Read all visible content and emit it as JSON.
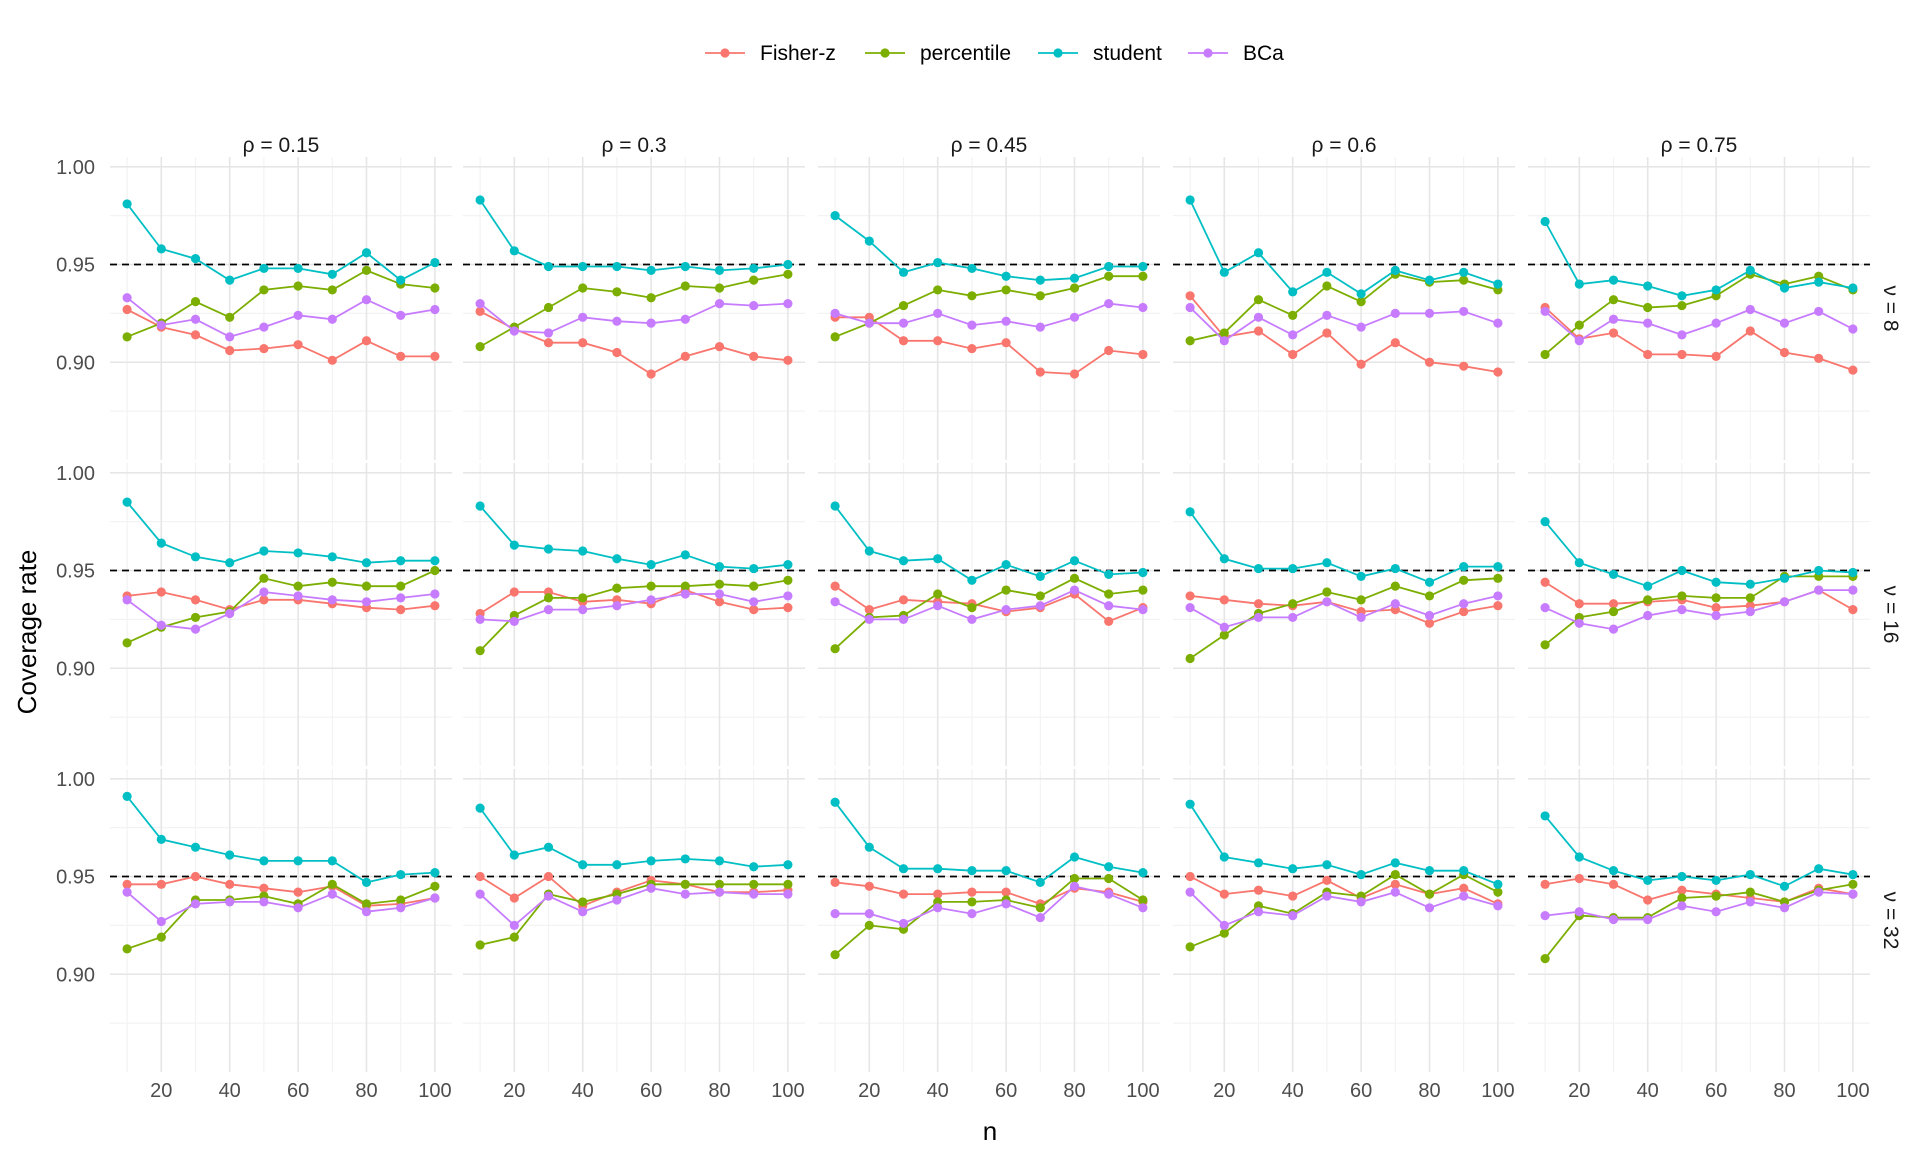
{
  "chart_data": {
    "type": "line",
    "facet_cols": {
      "variable": "ρ",
      "values": [
        "0.15",
        "0.3",
        "0.45",
        "0.6",
        "0.75"
      ]
    },
    "facet_rows": {
      "variable": "ν",
      "values": [
        "8",
        "16",
        "32"
      ]
    },
    "xlabel": "n",
    "ylabel": "Coverage rate",
    "x": [
      10,
      20,
      30,
      40,
      50,
      60,
      70,
      80,
      90,
      100
    ],
    "x_ticks": [
      20,
      40,
      60,
      80,
      100
    ],
    "xlim": [
      5,
      105
    ],
    "y_ticks": [
      0.9,
      0.95,
      1.0
    ],
    "y_tick_labels": [
      "0.90",
      "0.95",
      "1.00"
    ],
    "ylim": [
      0.85,
      1.005
    ],
    "reference_line": {
      "y": 0.95,
      "style": "dashed"
    },
    "legend": {
      "position": "top"
    },
    "series_meta": [
      {
        "name": "Fisher-z",
        "color": "#F8766D"
      },
      {
        "name": "percentile",
        "color": "#7CAE00"
      },
      {
        "name": "student",
        "color": "#00BFC4"
      },
      {
        "name": "BCa",
        "color": "#C77CFF"
      }
    ],
    "panels": [
      {
        "row": 0,
        "col": 0,
        "series": [
          [
            0.927,
            0.918,
            0.914,
            0.906,
            0.907,
            0.909,
            0.901,
            0.911,
            0.903,
            0.903
          ],
          [
            0.913,
            0.92,
            0.931,
            0.923,
            0.937,
            0.939,
            0.937,
            0.947,
            0.94,
            0.938
          ],
          [
            0.981,
            0.958,
            0.953,
            0.942,
            0.948,
            0.948,
            0.945,
            0.956,
            0.942,
            0.951
          ],
          [
            0.933,
            0.919,
            0.922,
            0.913,
            0.918,
            0.924,
            0.922,
            0.932,
            0.924,
            0.927
          ]
        ]
      },
      {
        "row": 0,
        "col": 1,
        "series": [
          [
            0.926,
            0.917,
            0.91,
            0.91,
            0.905,
            0.894,
            0.903,
            0.908,
            0.903,
            0.901
          ],
          [
            0.908,
            0.918,
            0.928,
            0.938,
            0.936,
            0.933,
            0.939,
            0.938,
            0.942,
            0.945
          ],
          [
            0.983,
            0.957,
            0.949,
            0.949,
            0.949,
            0.947,
            0.949,
            0.947,
            0.948,
            0.95
          ],
          [
            0.93,
            0.916,
            0.915,
            0.923,
            0.921,
            0.92,
            0.922,
            0.93,
            0.929,
            0.93
          ]
        ]
      },
      {
        "row": 0,
        "col": 2,
        "series": [
          [
            0.923,
            0.923,
            0.911,
            0.911,
            0.907,
            0.91,
            0.895,
            0.894,
            0.906,
            0.904
          ],
          [
            0.913,
            0.92,
            0.929,
            0.937,
            0.934,
            0.937,
            0.934,
            0.938,
            0.944,
            0.944
          ],
          [
            0.975,
            0.962,
            0.946,
            0.951,
            0.948,
            0.944,
            0.942,
            0.943,
            0.949,
            0.949
          ],
          [
            0.925,
            0.92,
            0.92,
            0.925,
            0.919,
            0.921,
            0.918,
            0.923,
            0.93,
            0.928
          ]
        ]
      },
      {
        "row": 0,
        "col": 3,
        "series": [
          [
            0.934,
            0.913,
            0.916,
            0.904,
            0.915,
            0.899,
            0.91,
            0.9,
            0.898,
            0.895
          ],
          [
            0.911,
            0.915,
            0.932,
            0.924,
            0.939,
            0.931,
            0.945,
            0.941,
            0.942,
            0.937
          ],
          [
            0.983,
            0.946,
            0.956,
            0.936,
            0.946,
            0.935,
            0.947,
            0.942,
            0.946,
            0.94
          ],
          [
            0.928,
            0.911,
            0.923,
            0.914,
            0.924,
            0.918,
            0.925,
            0.925,
            0.926,
            0.92
          ]
        ]
      },
      {
        "row": 0,
        "col": 4,
        "series": [
          [
            0.928,
            0.912,
            0.915,
            0.904,
            0.904,
            0.903,
            0.916,
            0.905,
            0.902,
            0.896
          ],
          [
            0.904,
            0.919,
            0.932,
            0.928,
            0.929,
            0.934,
            0.945,
            0.94,
            0.944,
            0.937
          ],
          [
            0.972,
            0.94,
            0.942,
            0.939,
            0.934,
            0.937,
            0.947,
            0.938,
            0.941,
            0.938
          ],
          [
            0.926,
            0.911,
            0.922,
            0.92,
            0.914,
            0.92,
            0.927,
            0.92,
            0.926,
            0.917
          ]
        ]
      },
      {
        "row": 1,
        "col": 0,
        "series": [
          [
            0.937,
            0.939,
            0.935,
            0.93,
            0.935,
            0.935,
            0.933,
            0.931,
            0.93,
            0.932
          ],
          [
            0.913,
            0.921,
            0.926,
            0.929,
            0.946,
            0.942,
            0.944,
            0.942,
            0.942,
            0.95
          ],
          [
            0.985,
            0.964,
            0.957,
            0.954,
            0.96,
            0.959,
            0.957,
            0.954,
            0.955,
            0.955
          ],
          [
            0.935,
            0.922,
            0.92,
            0.928,
            0.939,
            0.937,
            0.935,
            0.934,
            0.936,
            0.938
          ]
        ]
      },
      {
        "row": 1,
        "col": 1,
        "series": [
          [
            0.928,
            0.939,
            0.939,
            0.934,
            0.935,
            0.933,
            0.94,
            0.934,
            0.93,
            0.931
          ],
          [
            0.909,
            0.927,
            0.936,
            0.936,
            0.941,
            0.942,
            0.942,
            0.943,
            0.942,
            0.945
          ],
          [
            0.983,
            0.963,
            0.961,
            0.96,
            0.956,
            0.953,
            0.958,
            0.952,
            0.951,
            0.953
          ],
          [
            0.925,
            0.924,
            0.93,
            0.93,
            0.932,
            0.935,
            0.938,
            0.938,
            0.934,
            0.937
          ]
        ]
      },
      {
        "row": 1,
        "col": 2,
        "series": [
          [
            0.942,
            0.93,
            0.935,
            0.934,
            0.933,
            0.929,
            0.931,
            0.938,
            0.924,
            0.931
          ],
          [
            0.91,
            0.926,
            0.927,
            0.938,
            0.931,
            0.94,
            0.937,
            0.946,
            0.938,
            0.94
          ],
          [
            0.983,
            0.96,
            0.955,
            0.956,
            0.945,
            0.953,
            0.947,
            0.955,
            0.948,
            0.949
          ],
          [
            0.934,
            0.925,
            0.925,
            0.932,
            0.925,
            0.93,
            0.932,
            0.94,
            0.932,
            0.93
          ]
        ]
      },
      {
        "row": 1,
        "col": 3,
        "series": [
          [
            0.937,
            0.935,
            0.933,
            0.932,
            0.934,
            0.929,
            0.93,
            0.923,
            0.929,
            0.932
          ],
          [
            0.905,
            0.917,
            0.928,
            0.933,
            0.939,
            0.935,
            0.942,
            0.937,
            0.945,
            0.946
          ],
          [
            0.98,
            0.956,
            0.951,
            0.951,
            0.954,
            0.947,
            0.951,
            0.944,
            0.952,
            0.952
          ],
          [
            0.931,
            0.921,
            0.926,
            0.926,
            0.934,
            0.926,
            0.933,
            0.927,
            0.933,
            0.937
          ]
        ]
      },
      {
        "row": 1,
        "col": 4,
        "series": [
          [
            0.944,
            0.933,
            0.933,
            0.934,
            0.935,
            0.931,
            0.932,
            0.934,
            0.94,
            0.93
          ],
          [
            0.912,
            0.926,
            0.929,
            0.935,
            0.937,
            0.936,
            0.936,
            0.947,
            0.947,
            0.947
          ],
          [
            0.975,
            0.954,
            0.948,
            0.942,
            0.95,
            0.944,
            0.943,
            0.946,
            0.95,
            0.949
          ],
          [
            0.931,
            0.923,
            0.92,
            0.927,
            0.93,
            0.927,
            0.929,
            0.934,
            0.94,
            0.94
          ]
        ]
      },
      {
        "row": 2,
        "col": 0,
        "series": [
          [
            0.946,
            0.946,
            0.95,
            0.946,
            0.944,
            0.942,
            0.945,
            0.935,
            0.936,
            0.939
          ],
          [
            0.913,
            0.919,
            0.938,
            0.938,
            0.94,
            0.936,
            0.946,
            0.936,
            0.938,
            0.945
          ],
          [
            0.991,
            0.969,
            0.965,
            0.961,
            0.958,
            0.958,
            0.958,
            0.947,
            0.951,
            0.952
          ],
          [
            0.942,
            0.927,
            0.936,
            0.937,
            0.937,
            0.934,
            0.941,
            0.932,
            0.934,
            0.939
          ]
        ]
      },
      {
        "row": 2,
        "col": 1,
        "series": [
          [
            0.95,
            0.939,
            0.95,
            0.935,
            0.942,
            0.948,
            0.946,
            0.942,
            0.942,
            0.943
          ],
          [
            0.915,
            0.919,
            0.941,
            0.937,
            0.941,
            0.946,
            0.946,
            0.946,
            0.946,
            0.946
          ],
          [
            0.985,
            0.961,
            0.965,
            0.956,
            0.956,
            0.958,
            0.959,
            0.958,
            0.955,
            0.956
          ],
          [
            0.941,
            0.925,
            0.94,
            0.932,
            0.938,
            0.944,
            0.941,
            0.942,
            0.941,
            0.941
          ]
        ]
      },
      {
        "row": 2,
        "col": 2,
        "series": [
          [
            0.947,
            0.945,
            0.941,
            0.941,
            0.942,
            0.942,
            0.936,
            0.944,
            0.942,
            0.937
          ],
          [
            0.91,
            0.925,
            0.923,
            0.937,
            0.937,
            0.938,
            0.934,
            0.949,
            0.949,
            0.938
          ],
          [
            0.988,
            0.965,
            0.954,
            0.954,
            0.953,
            0.953,
            0.947,
            0.96,
            0.955,
            0.952
          ],
          [
            0.931,
            0.931,
            0.926,
            0.934,
            0.931,
            0.936,
            0.929,
            0.945,
            0.941,
            0.934
          ]
        ]
      },
      {
        "row": 2,
        "col": 3,
        "series": [
          [
            0.95,
            0.941,
            0.943,
            0.94,
            0.948,
            0.939,
            0.946,
            0.941,
            0.944,
            0.936
          ],
          [
            0.914,
            0.921,
            0.935,
            0.931,
            0.942,
            0.94,
            0.951,
            0.941,
            0.951,
            0.942
          ],
          [
            0.987,
            0.96,
            0.957,
            0.954,
            0.956,
            0.951,
            0.957,
            0.953,
            0.953,
            0.946
          ],
          [
            0.942,
            0.925,
            0.932,
            0.93,
            0.94,
            0.937,
            0.942,
            0.934,
            0.94,
            0.935
          ]
        ]
      },
      {
        "row": 2,
        "col": 4,
        "series": [
          [
            0.946,
            0.949,
            0.946,
            0.938,
            0.943,
            0.941,
            0.939,
            0.937,
            0.944,
            0.941
          ],
          [
            0.908,
            0.93,
            0.929,
            0.929,
            0.939,
            0.94,
            0.942,
            0.937,
            0.943,
            0.946
          ],
          [
            0.981,
            0.96,
            0.953,
            0.948,
            0.95,
            0.948,
            0.951,
            0.945,
            0.954,
            0.951
          ],
          [
            0.93,
            0.932,
            0.928,
            0.928,
            0.935,
            0.932,
            0.937,
            0.934,
            0.942,
            0.941
          ]
        ]
      }
    ]
  }
}
